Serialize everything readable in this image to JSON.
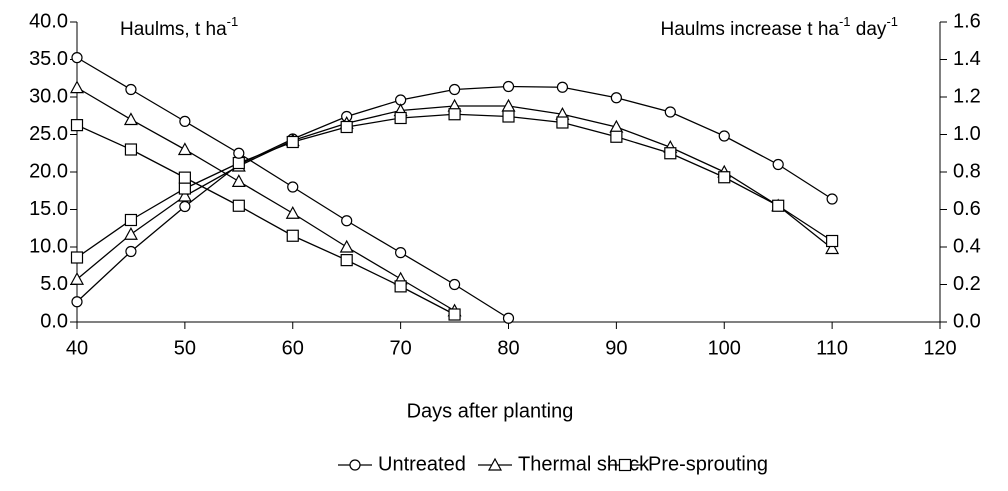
{
  "chart_data": {
    "type": "line",
    "y_title": [
      {
        "text": "Haulms, t ha"
      },
      {
        "text": "-1",
        "sup": true
      }
    ],
    "y2_title": [
      {
        "text": "Haulms increase t ha"
      },
      {
        "text": "-1",
        "sup": true
      },
      {
        "text": " day"
      },
      {
        "text": "-1",
        "sup": true
      }
    ],
    "x_title": "Days after planting",
    "xlim": [
      40,
      120
    ],
    "xticks": [
      40,
      50,
      60,
      70,
      80,
      90,
      100,
      110,
      120
    ],
    "ylim": [
      0,
      40
    ],
    "yticks": [
      {
        "value": 0,
        "label": "0.0"
      },
      {
        "value": 5,
        "label": "5.0"
      },
      {
        "value": 10,
        "label": "10.0"
      },
      {
        "value": 15,
        "label": "15.0"
      },
      {
        "value": 20,
        "label": "20.0"
      },
      {
        "value": 25,
        "label": "25.0"
      },
      {
        "value": 30,
        "label": "30.0"
      },
      {
        "value": 35,
        "label": "35.0"
      },
      {
        "value": 40,
        "label": "40.0"
      }
    ],
    "y2lim": [
      0,
      1.6
    ],
    "y2ticks": [
      {
        "value": 0,
        "label": "0.0"
      },
      {
        "value": 0.2,
        "label": "0.2"
      },
      {
        "value": 0.4,
        "label": "0.4"
      },
      {
        "value": 0.6,
        "label": "0.6"
      },
      {
        "value": 0.8,
        "label": "0.8"
      },
      {
        "value": 1,
        "label": "1.0"
      },
      {
        "value": 1.2,
        "label": "1.2"
      },
      {
        "value": 1.4,
        "label": "1.4"
      },
      {
        "value": 1.6,
        "label": "1.6"
      }
    ],
    "x": [
      40,
      45,
      50,
      55,
      60,
      65,
      70,
      75,
      80,
      85,
      90,
      95,
      100,
      105,
      110
    ],
    "series": [
      {
        "name": "Untreated",
        "color": "#000000",
        "marker": "circle",
        "values": [
          2.7,
          9.4,
          15.4,
          21.0,
          24.4,
          27.4,
          29.6,
          31.0,
          31.4,
          31.3,
          29.9,
          28.0,
          24.8,
          21.0,
          16.4
        ]
      },
      {
        "name": "Thermal shock",
        "color": "#000000",
        "marker": "triangle",
        "values": [
          5.7,
          11.7,
          16.8,
          20.8,
          24.2,
          26.5,
          28.2,
          28.8,
          28.8,
          27.7,
          26.0,
          23.3,
          20.0,
          15.5,
          9.8
        ]
      },
      {
        "name": "Pre-sprouting",
        "color": "#000000",
        "marker": "square",
        "values": [
          8.6,
          13.6,
          17.8,
          21.2,
          24.0,
          26.0,
          27.2,
          27.7,
          27.4,
          26.6,
          24.7,
          22.5,
          19.3,
          15.5,
          10.8
        ]
      }
    ],
    "increase_series": [
      {
        "axis": "y2",
        "marker": "circle",
        "x": [
          40,
          45,
          50,
          55,
          60,
          65,
          70,
          75,
          80
        ],
        "values": [
          1.41,
          1.24,
          1.07,
          0.9,
          0.72,
          0.54,
          0.37,
          0.2,
          0.02
        ]
      },
      {
        "axis": "y2",
        "marker": "triangle",
        "x": [
          40,
          45,
          50,
          55,
          60,
          65,
          70,
          75
        ],
        "values": [
          1.25,
          1.08,
          0.92,
          0.75,
          0.58,
          0.4,
          0.23,
          0.06
        ]
      },
      {
        "axis": "y2",
        "marker": "square",
        "x": [
          40,
          45,
          50,
          55,
          60,
          65,
          70,
          75
        ],
        "values": [
          1.05,
          0.92,
          0.77,
          0.62,
          0.46,
          0.33,
          0.19,
          0.04
        ]
      }
    ]
  }
}
